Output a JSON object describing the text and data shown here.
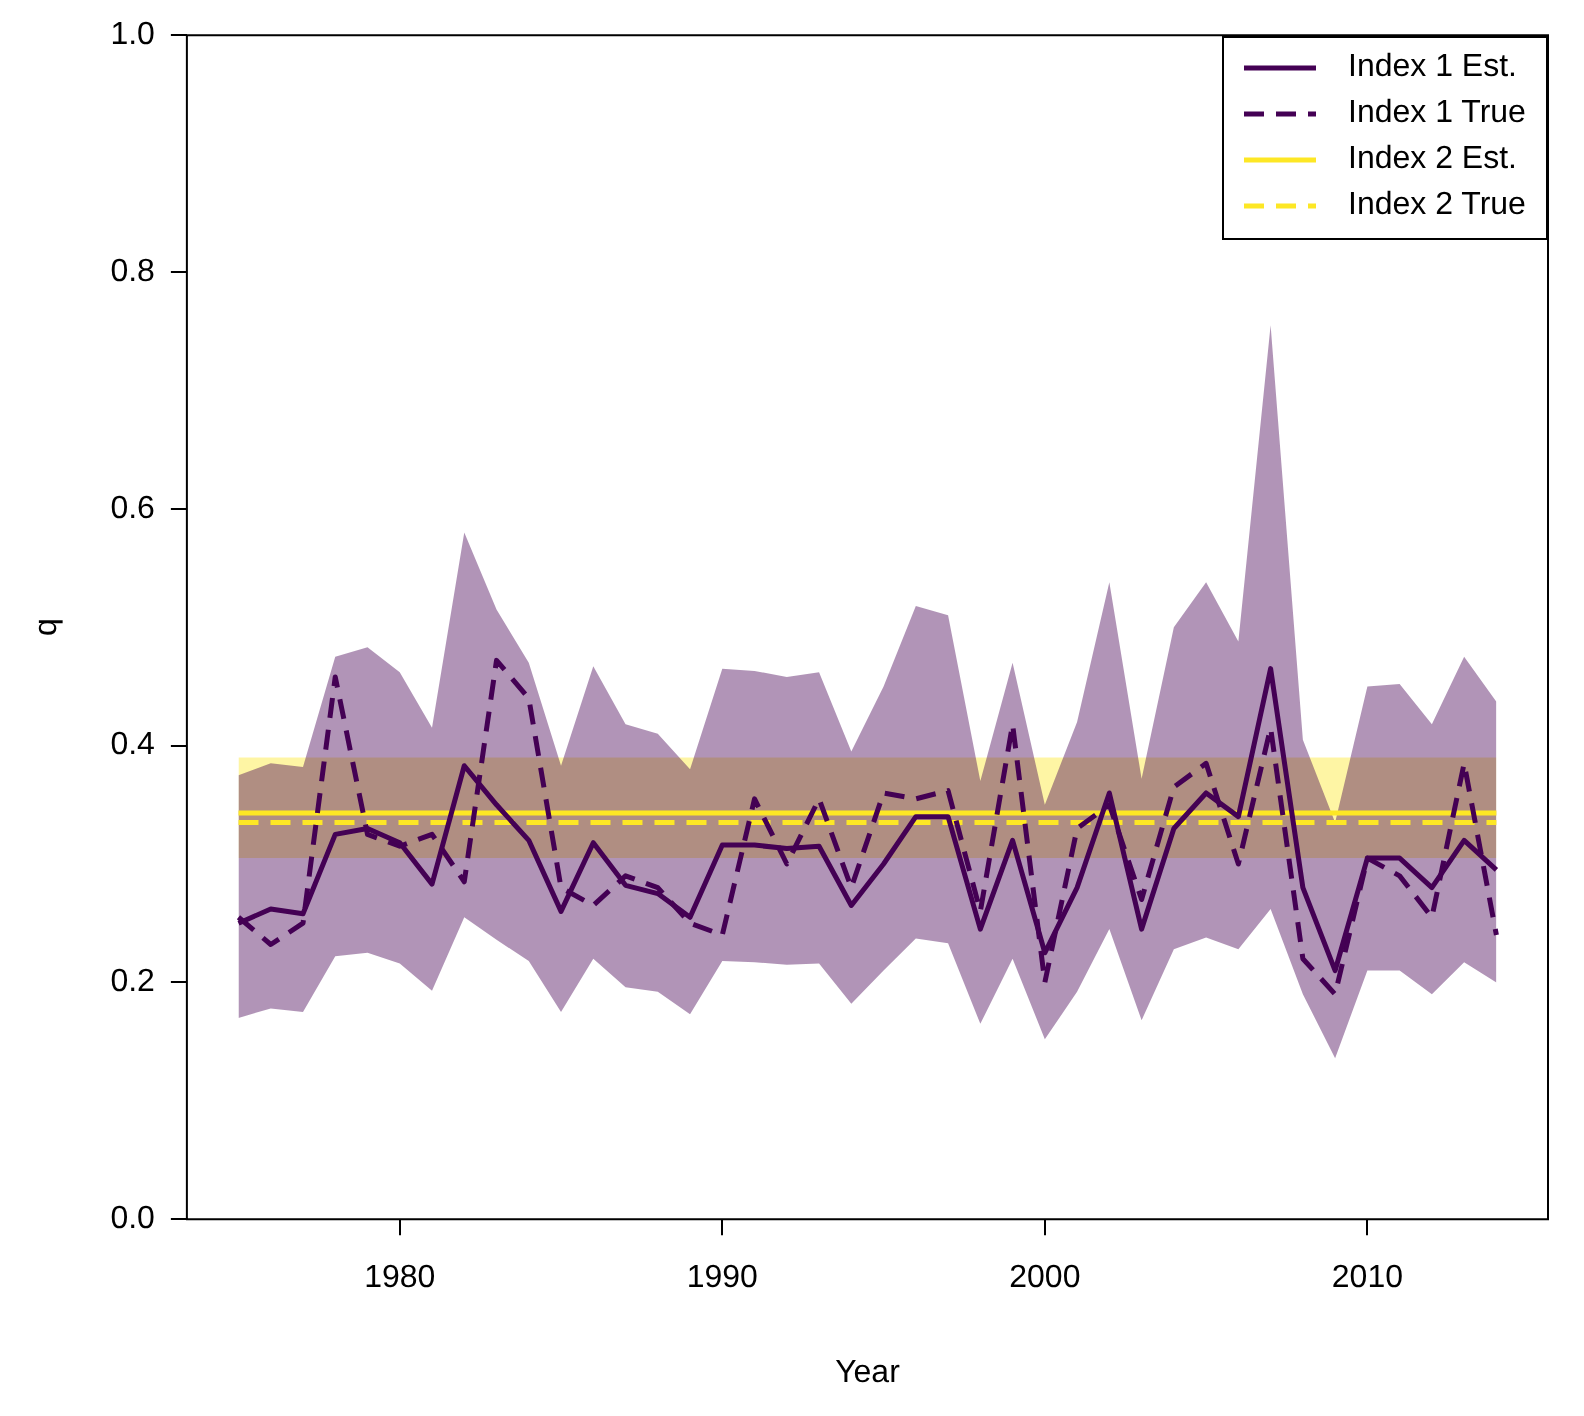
{
  "chart_data": {
    "type": "line",
    "xlabel": "Year",
    "ylabel": "q",
    "x": [
      1975,
      1976,
      1977,
      1978,
      1979,
      1980,
      1981,
      1982,
      1983,
      1984,
      1985,
      1986,
      1987,
      1988,
      1989,
      1990,
      1991,
      1992,
      1993,
      1994,
      1995,
      1996,
      1997,
      1998,
      1999,
      2000,
      2001,
      2002,
      2003,
      2004,
      2005,
      2006,
      2007,
      2008,
      2009,
      2010,
      2011,
      2012,
      2013,
      2014
    ],
    "xlim": [
      1973.4,
      2015.6
    ],
    "xticks": [
      1980,
      1990,
      2000,
      2010
    ],
    "ylim": [
      0,
      1
    ],
    "yticks": [
      {
        "value": 0,
        "label": "0.0"
      },
      {
        "value": 0.2,
        "label": "0.2"
      },
      {
        "value": 0.4,
        "label": "0.4"
      },
      {
        "value": 0.6,
        "label": "0.6"
      },
      {
        "value": 0.8,
        "label": "0.8"
      },
      {
        "value": 1,
        "label": "1.0"
      }
    ],
    "grid": false,
    "legend": "top right",
    "marker": "none",
    "series": [
      {
        "name": "Index 1 Est.",
        "color": "#440154",
        "line_style": "solid",
        "values": [
          0.25,
          0.262,
          0.258,
          0.325,
          0.33,
          0.318,
          0.283,
          0.383,
          0.35,
          0.32,
          0.26,
          0.318,
          0.282,
          0.275,
          0.255,
          0.316,
          0.316,
          0.313,
          0.315,
          0.265,
          0.3,
          0.34,
          0.34,
          0.245,
          0.32,
          0.225,
          0.28,
          0.36,
          0.245,
          0.33,
          0.36,
          0.34,
          0.465,
          0.28,
          0.21,
          0.305,
          0.305,
          0.28,
          0.32,
          0.295
        ],
        "lower": [
          0.17,
          0.178,
          0.175,
          0.222,
          0.225,
          0.216,
          0.193,
          0.255,
          0.236,
          0.218,
          0.175,
          0.22,
          0.196,
          0.192,
          0.173,
          0.218,
          0.217,
          0.215,
          0.216,
          0.182,
          0.21,
          0.237,
          0.233,
          0.165,
          0.22,
          0.152,
          0.192,
          0.245,
          0.168,
          0.228,
          0.238,
          0.228,
          0.262,
          0.19,
          0.136,
          0.21,
          0.21,
          0.19,
          0.217,
          0.2
        ],
        "upper": [
          0.375,
          0.385,
          0.382,
          0.475,
          0.483,
          0.462,
          0.415,
          0.58,
          0.515,
          0.47,
          0.383,
          0.467,
          0.418,
          0.41,
          0.38,
          0.465,
          0.463,
          0.458,
          0.462,
          0.395,
          0.45,
          0.518,
          0.51,
          0.37,
          0.47,
          0.35,
          0.42,
          0.538,
          0.372,
          0.5,
          0.538,
          0.488,
          0.755,
          0.405,
          0.335,
          0.45,
          0.452,
          0.418,
          0.475,
          0.437
        ]
      },
      {
        "name": "Index 1 True",
        "color": "#440154",
        "line_style": "dashed",
        "values": [
          0.255,
          0.232,
          0.25,
          0.458,
          0.325,
          0.315,
          0.325,
          0.285,
          0.472,
          0.44,
          0.28,
          0.265,
          0.29,
          0.28,
          0.25,
          0.24,
          0.355,
          0.3,
          0.355,
          0.28,
          0.36,
          0.355,
          0.362,
          0.26,
          0.418,
          0.2,
          0.33,
          0.35,
          0.27,
          0.365,
          0.385,
          0.3,
          0.415,
          0.22,
          0.19,
          0.305,
          0.29,
          0.255,
          0.385,
          0.24
        ]
      },
      {
        "name": "Index 2 Est.",
        "color": "#fde725",
        "line_style": "solid",
        "values": [
          0.343,
          0.343,
          0.343,
          0.343,
          0.343,
          0.343,
          0.343,
          0.343,
          0.343,
          0.343,
          0.343,
          0.343,
          0.343,
          0.343,
          0.343,
          0.343,
          0.343,
          0.343,
          0.343,
          0.343,
          0.343,
          0.343,
          0.343,
          0.343,
          0.343,
          0.343,
          0.343,
          0.343,
          0.343,
          0.343,
          0.343,
          0.343,
          0.343,
          0.343,
          0.343,
          0.343,
          0.343,
          0.343,
          0.343,
          0.343
        ],
        "lower": [
          0.305,
          0.305,
          0.305,
          0.305,
          0.305,
          0.305,
          0.305,
          0.305,
          0.305,
          0.305,
          0.305,
          0.305,
          0.305,
          0.305,
          0.305,
          0.305,
          0.305,
          0.305,
          0.305,
          0.305,
          0.305,
          0.305,
          0.305,
          0.305,
          0.305,
          0.305,
          0.305,
          0.305,
          0.305,
          0.305,
          0.305,
          0.305,
          0.305,
          0.305,
          0.305,
          0.305,
          0.305,
          0.305,
          0.305,
          0.305
        ],
        "upper": [
          0.39,
          0.39,
          0.39,
          0.39,
          0.39,
          0.39,
          0.39,
          0.39,
          0.39,
          0.39,
          0.39,
          0.39,
          0.39,
          0.39,
          0.39,
          0.39,
          0.39,
          0.39,
          0.39,
          0.39,
          0.39,
          0.39,
          0.39,
          0.39,
          0.39,
          0.39,
          0.39,
          0.39,
          0.39,
          0.39,
          0.39,
          0.39,
          0.39,
          0.39,
          0.39,
          0.39,
          0.39,
          0.39,
          0.39,
          0.39
        ]
      },
      {
        "name": "Index 2 True",
        "color": "#fde725",
        "line_style": "dashed",
        "values": [
          0.335,
          0.335,
          0.335,
          0.335,
          0.335,
          0.335,
          0.335,
          0.335,
          0.335,
          0.335,
          0.335,
          0.335,
          0.335,
          0.335,
          0.335,
          0.335,
          0.335,
          0.335,
          0.335,
          0.335,
          0.335,
          0.335,
          0.335,
          0.335,
          0.335,
          0.335,
          0.335,
          0.335,
          0.335,
          0.335,
          0.335,
          0.335,
          0.335,
          0.335,
          0.335,
          0.335,
          0.335,
          0.335,
          0.335,
          0.335
        ]
      }
    ]
  }
}
